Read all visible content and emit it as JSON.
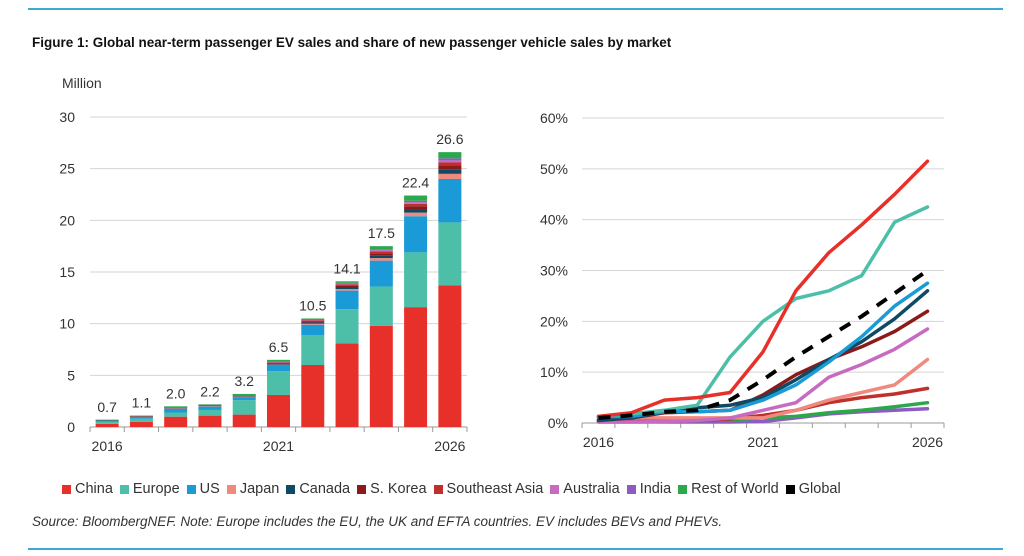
{
  "title": "Figure 1: Global near-term passenger EV sales and share of new passenger vehicle sales by market",
  "source": "Source: BloombergNEF. Note: Europe includes the EU, the UK and EFTA countries. EV includes BEVs and PHEVs.",
  "legend": [
    {
      "name": "China",
      "color": "#e8302a"
    },
    {
      "name": "Europe",
      "color": "#4dbfa8"
    },
    {
      "name": "US",
      "color": "#1a9ad6"
    },
    {
      "name": "Japan",
      "color": "#f08a80"
    },
    {
      "name": "Canada",
      "color": "#0e4a63"
    },
    {
      "name": "S. Korea",
      "color": "#8b1a1a"
    },
    {
      "name": "Southeast Asia",
      "color": "#c0302a"
    },
    {
      "name": "Australia",
      "color": "#c66bbf"
    },
    {
      "name": "India",
      "color": "#8c5cc4"
    },
    {
      "name": "Rest of World",
      "color": "#2aa84a"
    },
    {
      "name": "Global",
      "color": "#000000"
    }
  ],
  "chart_data": [
    {
      "type": "bar",
      "stacked": true,
      "ylabel": "Million",
      "ylim": [
        0,
        30
      ],
      "yticks": [
        0,
        5,
        10,
        15,
        20,
        25,
        30
      ],
      "categories": [
        2016,
        2017,
        2018,
        2019,
        2020,
        2021,
        2022,
        2023,
        2024,
        2025,
        2026
      ],
      "xtick_labels": [
        "2016",
        "2021",
        "2026"
      ],
      "grid": true,
      "totals": [
        "0.7",
        "1.1",
        "2.0",
        "2.2",
        "3.2",
        "6.5",
        "10.5",
        "14.1",
        "17.5",
        "22.4",
        "26.6"
      ],
      "series": [
        {
          "name": "China",
          "values": [
            0.3,
            0.5,
            1.0,
            1.1,
            1.2,
            3.1,
            6.0,
            8.1,
            9.8,
            11.6,
            13.7
          ]
        },
        {
          "name": "Europe",
          "values": [
            0.2,
            0.3,
            0.4,
            0.55,
            1.4,
            2.3,
            2.9,
            3.3,
            3.8,
            5.3,
            6.1
          ]
        },
        {
          "name": "US",
          "values": [
            0.16,
            0.2,
            0.36,
            0.33,
            0.3,
            0.6,
            1.0,
            1.8,
            2.5,
            3.5,
            4.2
          ]
        },
        {
          "name": "Japan",
          "values": [
            0.01,
            0.03,
            0.05,
            0.04,
            0.03,
            0.04,
            0.1,
            0.15,
            0.25,
            0.35,
            0.5
          ]
        },
        {
          "name": "Canada",
          "values": [
            0.01,
            0.02,
            0.04,
            0.05,
            0.05,
            0.08,
            0.12,
            0.15,
            0.22,
            0.3,
            0.4
          ]
        },
        {
          "name": "S. Korea",
          "values": [
            0.01,
            0.02,
            0.03,
            0.04,
            0.05,
            0.1,
            0.12,
            0.18,
            0.25,
            0.32,
            0.4
          ]
        },
        {
          "name": "Southeast Asia",
          "values": [
            0.0,
            0.01,
            0.02,
            0.02,
            0.03,
            0.05,
            0.08,
            0.12,
            0.17,
            0.22,
            0.3
          ]
        },
        {
          "name": "Australia",
          "values": [
            0.0,
            0.0,
            0.01,
            0.01,
            0.02,
            0.03,
            0.05,
            0.08,
            0.11,
            0.15,
            0.2
          ]
        },
        {
          "name": "India",
          "values": [
            0.0,
            0.0,
            0.01,
            0.01,
            0.01,
            0.02,
            0.03,
            0.07,
            0.1,
            0.15,
            0.2
          ]
        },
        {
          "name": "Rest of World",
          "values": [
            0.01,
            0.02,
            0.08,
            0.05,
            0.11,
            0.18,
            0.1,
            0.15,
            0.3,
            0.51,
            0.6
          ]
        }
      ]
    },
    {
      "type": "line",
      "ylim": [
        0,
        60
      ],
      "yticks": [
        "0%",
        "10%",
        "20%",
        "30%",
        "40%",
        "50%",
        "60%"
      ],
      "categories": [
        2016,
        2017,
        2018,
        2019,
        2020,
        2021,
        2022,
        2023,
        2024,
        2025,
        2026
      ],
      "xtick_labels": [
        "2016",
        "2021",
        "2026"
      ],
      "grid": true,
      "unit": "%",
      "series": [
        {
          "name": "India",
          "values": [
            0.2,
            0.2,
            0.2,
            0.2,
            0.2,
            0.3,
            1.0,
            1.8,
            2.2,
            2.5,
            2.8
          ]
        },
        {
          "name": "Rest of World",
          "values": [
            0.3,
            0.3,
            0.4,
            0.5,
            0.6,
            1.0,
            1.3,
            2.0,
            2.5,
            3.2,
            4.0
          ]
        },
        {
          "name": "Southeast Asia",
          "values": [
            0.5,
            0.5,
            0.5,
            0.5,
            0.8,
            1.5,
            2.5,
            4.0,
            5.0,
            5.7,
            6.8
          ]
        },
        {
          "name": "Japan",
          "values": [
            1,
            1,
            1,
            1,
            1,
            1,
            2.5,
            4.5,
            6,
            7.5,
            12.5
          ]
        },
        {
          "name": "Australia",
          "values": [
            0.2,
            0.2,
            0.3,
            0.5,
            1,
            2.5,
            4,
            9,
            11.5,
            14.5,
            18.5
          ]
        },
        {
          "name": "S. Korea",
          "values": [
            0.5,
            1,
            2,
            2.2,
            2.5,
            5.5,
            9.5,
            12.5,
            15,
            18,
            22
          ]
        },
        {
          "name": "Canada",
          "values": [
            0.6,
            1,
            2.2,
            3,
            3.5,
            5,
            8.5,
            12.5,
            16,
            20.5,
            26
          ]
        },
        {
          "name": "US",
          "values": [
            1.2,
            1.3,
            2.2,
            2.2,
            2.5,
            4.5,
            7.5,
            12,
            17,
            23,
            27.5
          ]
        },
        {
          "name": "Europe",
          "values": [
            1.3,
            1.8,
            2.5,
            3.5,
            13,
            20,
            24.5,
            26,
            29,
            39.5,
            42.5
          ]
        },
        {
          "name": "China",
          "values": [
            1.3,
            2,
            4.5,
            5,
            6,
            14,
            26,
            33.5,
            39,
            45,
            51.5
          ]
        },
        {
          "name": "Global",
          "values": [
            1,
            1.5,
            2.2,
            2.5,
            4.5,
            8.5,
            13,
            17,
            21,
            25.5,
            30
          ],
          "dashed": true
        }
      ]
    }
  ]
}
